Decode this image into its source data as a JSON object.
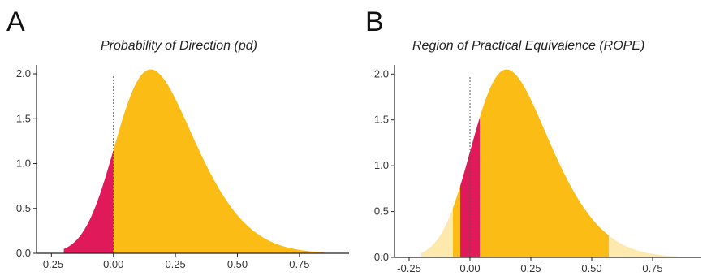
{
  "chart_data": [
    {
      "type": "area",
      "panel_label": "A",
      "title": "Probability of Direction (pd)",
      "xlabel": "",
      "ylabel": "",
      "xlim": [
        -0.31,
        0.95
      ],
      "ylim": [
        0,
        2.1
      ],
      "xticks": [
        -0.25,
        0.0,
        0.25,
        0.5,
        0.75
      ],
      "xtick_labels": [
        "-0.25",
        "0.00",
        "0.25",
        "0.50",
        "0.75"
      ],
      "yticks": [
        0.0,
        0.5,
        1.0,
        1.5,
        2.0
      ],
      "ytick_labels": [
        "0.0",
        "0.5",
        "1.0",
        "1.5",
        "2.0"
      ],
      "density": {
        "shape": "skew-normal",
        "mode": 0.15,
        "peak_density": 2.05,
        "support": [
          -0.2,
          0.85
        ]
      },
      "reference_line": {
        "x": 0.0,
        "style": "dotted"
      },
      "regions": [
        {
          "name": "negative",
          "from": -0.2,
          "to": 0.0,
          "color": "#e0195a"
        },
        {
          "name": "positive",
          "from": 0.0,
          "to": 0.85,
          "color": "#fbbc16"
        }
      ]
    },
    {
      "type": "area",
      "panel_label": "B",
      "title": "Region of Practical Equivalence (ROPE)",
      "xlabel": "",
      "ylabel": "",
      "xlim": [
        -0.31,
        0.95
      ],
      "ylim": [
        0,
        2.1
      ],
      "xticks": [
        -0.25,
        0.0,
        0.25,
        0.5,
        0.75
      ],
      "xtick_labels": [
        "-0.25",
        "0.00",
        "0.25",
        "0.50",
        "0.75"
      ],
      "yticks": [
        0.0,
        0.5,
        1.0,
        1.5,
        2.0
      ],
      "ytick_labels": [
        "0.0",
        "0.5",
        "1.0",
        "1.5",
        "2.0"
      ],
      "density": {
        "shape": "skew-normal",
        "mode": 0.15,
        "peak_density": 2.05,
        "support": [
          -0.2,
          0.85
        ]
      },
      "reference_line": {
        "x": 0.0,
        "style": "dotted"
      },
      "regions": [
        {
          "name": "outside-interval-left",
          "from": -0.2,
          "to": -0.07,
          "color": "#fde8ae"
        },
        {
          "name": "interval-left",
          "from": -0.07,
          "to": -0.04,
          "color": "#fbbc16"
        },
        {
          "name": "rope",
          "from": -0.04,
          "to": 0.04,
          "color": "#e0195a"
        },
        {
          "name": "interval-right",
          "from": 0.04,
          "to": 0.57,
          "color": "#fbbc16"
        },
        {
          "name": "outside-interval-right",
          "from": 0.57,
          "to": 0.85,
          "color": "#fde8ae"
        }
      ]
    }
  ]
}
